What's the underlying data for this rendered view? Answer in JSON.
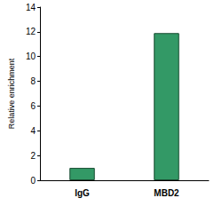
{
  "chart_data": {
    "type": "bar",
    "categories": [
      "IgG",
      "MBD2"
    ],
    "values": [
      1,
      11.9
    ],
    "color": "#339966",
    "ylabel": "Relative enrichment",
    "ylim": [
      0,
      14
    ],
    "yticks": [
      0,
      2,
      4,
      6,
      8,
      10,
      12,
      14
    ],
    "grid": false
  }
}
